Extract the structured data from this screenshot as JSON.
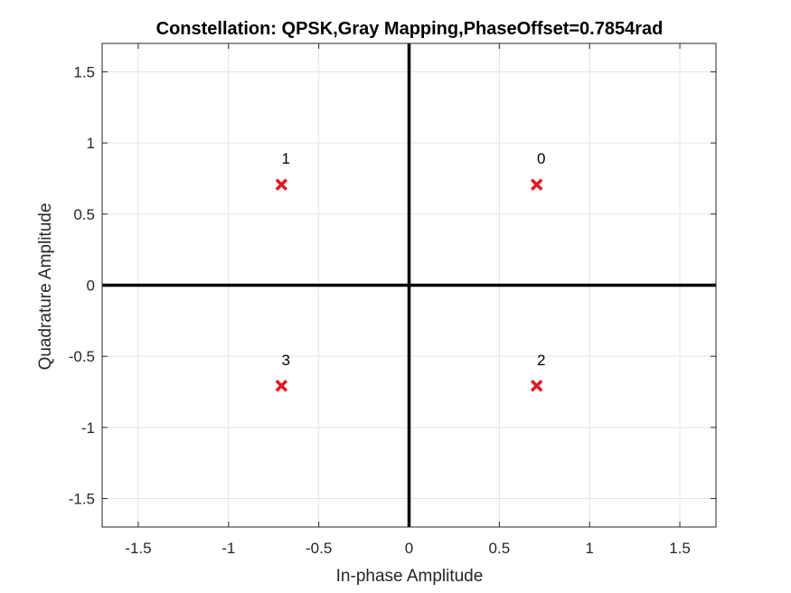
{
  "chart_data": {
    "type": "scatter",
    "title": "Constellation: QPSK,Gray Mapping,PhaseOffset=0.7854rad",
    "xlabel": "In-phase Amplitude",
    "ylabel": "Quadrature Amplitude",
    "xlim": [
      -1.7,
      1.7
    ],
    "ylim": [
      -1.7,
      1.7
    ],
    "xticks": [
      -1.5,
      -1,
      -0.5,
      0,
      0.5,
      1,
      1.5
    ],
    "yticks": [
      -1.5,
      -1,
      -0.5,
      0,
      0.5,
      1,
      1.5
    ],
    "xtick_labels": [
      "-1.5",
      "-1",
      "-0.5",
      "0",
      "0.5",
      "1",
      "1.5"
    ],
    "ytick_labels": [
      "-1.5",
      "-1",
      "-0.5",
      "0",
      "0.5",
      "1",
      "1.5"
    ],
    "grid": true,
    "marker": "x",
    "marker_color": "#e8161c",
    "axis_line_color": "#000000",
    "points": [
      {
        "label": "0",
        "x": 0.7071,
        "y": 0.7071
      },
      {
        "label": "1",
        "x": -0.7071,
        "y": 0.7071
      },
      {
        "label": "2",
        "x": 0.7071,
        "y": -0.7071
      },
      {
        "label": "3",
        "x": -0.7071,
        "y": -0.7071
      }
    ]
  }
}
